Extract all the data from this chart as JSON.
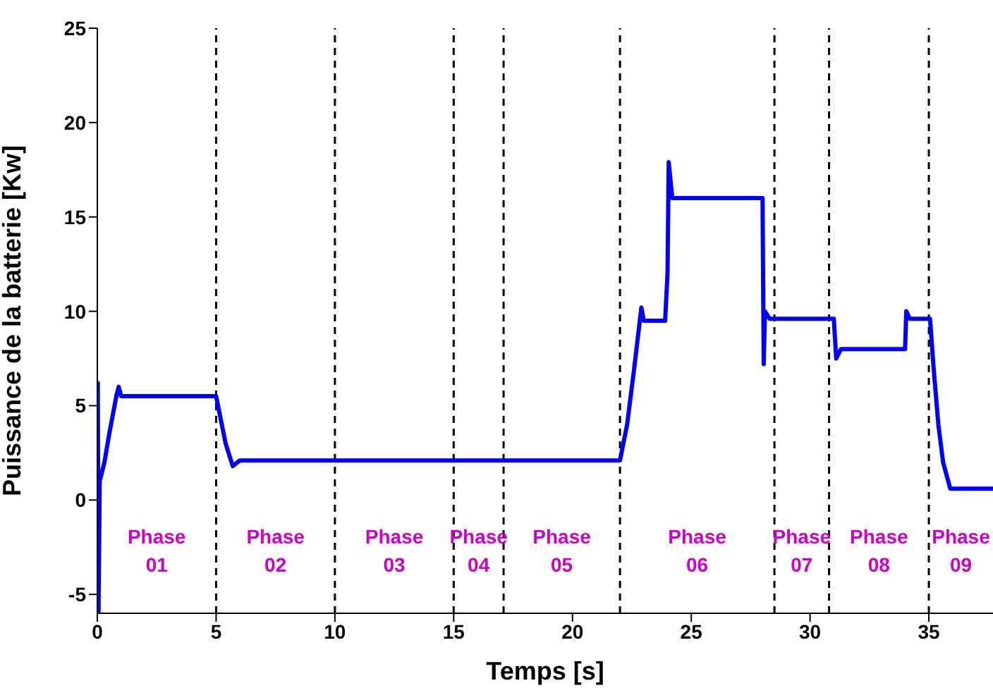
{
  "chart_data": {
    "type": "line",
    "xlabel": "Temps [s]",
    "ylabel": "Puissance  de la batterie [Kw]",
    "xlim": [
      0,
      37.7
    ],
    "xticks": [
      0,
      5,
      10,
      15,
      20,
      25,
      30,
      35
    ],
    "ylim": [
      -6,
      25
    ],
    "yticks": [
      -5,
      0,
      5,
      10,
      15,
      20,
      25
    ],
    "grid": false,
    "marker": "none",
    "line_style": "solid",
    "series": [
      {
        "color": "#0000ff",
        "x": [
          0,
          0.02,
          0.05,
          0.1,
          0.3,
          0.5,
          0.8,
          0.9,
          1,
          5,
          5.4,
          5.7,
          6,
          22,
          22.3,
          22.6,
          22.9,
          23,
          23.9,
          24,
          24.05,
          24.2,
          28,
          28.05,
          28.1,
          28.3,
          31,
          31.1,
          31.3,
          34,
          34.05,
          34.2,
          35.05,
          35.2,
          35.4,
          35.6,
          35.9,
          37.7
        ],
        "values": [
          0,
          6.2,
          -6,
          1,
          2,
          3.5,
          5.5,
          6,
          5.5,
          5.5,
          3,
          1.8,
          2.1,
          2.1,
          4,
          7,
          10.2,
          9.5,
          9.5,
          12,
          17.9,
          16,
          16,
          7.2,
          10,
          9.6,
          9.6,
          7.5,
          8,
          8,
          10,
          9.6,
          9.6,
          7,
          4,
          2,
          0.6,
          0.6
        ]
      }
    ],
    "ref_lines": [
      {
        "axis": "x",
        "value": 5,
        "color": "#000000",
        "line_style": "dashed"
      },
      {
        "axis": "x",
        "value": 10,
        "color": "#000000",
        "line_style": "dashed"
      },
      {
        "axis": "x",
        "value": 15,
        "color": "#000000",
        "line_style": "dashed"
      },
      {
        "axis": "x",
        "value": 17.1,
        "color": "#000000",
        "line_style": "dashed"
      },
      {
        "axis": "x",
        "value": 22,
        "color": "#000000",
        "line_style": "dashed"
      },
      {
        "axis": "x",
        "value": 28.5,
        "color": "#000000",
        "line_style": "dashed"
      },
      {
        "axis": "x",
        "value": 30.8,
        "color": "#000000",
        "line_style": "dashed"
      },
      {
        "axis": "x",
        "value": 35,
        "color": "#000000",
        "line_style": "dashed"
      }
    ],
    "annotations": [
      "Phase 01",
      "Phase 02",
      "Phase 03",
      "Phase 04",
      "Phase 05",
      "Phase 06",
      "Phase 07",
      "Phase 08",
      "Phase 09"
    ]
  }
}
